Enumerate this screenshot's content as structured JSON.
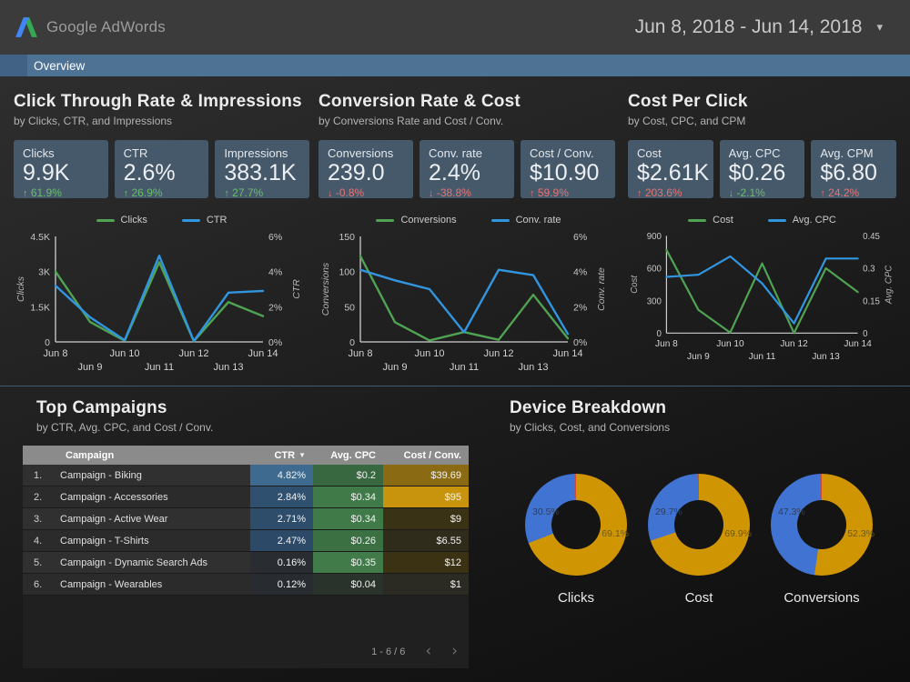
{
  "header": {
    "logo_text": "Google AdWords",
    "date_range": "Jun 8, 2018 - Jun 14, 2018"
  },
  "tabbar": {
    "label": "Overview"
  },
  "colors": {
    "series_green": "#4fa352",
    "series_blue": "#3295e0",
    "donut_gold": "#cf9502",
    "donut_blue": "#4173d2",
    "donut_red": "#d6492f",
    "delta_good": "#68bd6c",
    "delta_bad": "#e57373",
    "accent_bar": "#4e7294"
  },
  "sections": [
    {
      "title": "Click Through Rate & Impressions",
      "subtitle": "by Clicks, CTR, and Impressions",
      "cards": [
        {
          "label": "Clicks",
          "value": "9.9K",
          "delta": "61.9%",
          "direction": "up",
          "tone": "good"
        },
        {
          "label": "CTR",
          "value": "2.6%",
          "delta": "26.9%",
          "direction": "up",
          "tone": "good"
        },
        {
          "label": "Impressions",
          "value": "383.1K",
          "delta": "27.7%",
          "direction": "up",
          "tone": "good"
        }
      ]
    },
    {
      "title": "Conversion Rate & Cost",
      "subtitle": "by Conversions Rate and Cost / Conv.",
      "cards": [
        {
          "label": "Conversions",
          "value": "239.0",
          "delta": "-0.8%",
          "direction": "down",
          "tone": "bad"
        },
        {
          "label": "Conv. rate",
          "value": "2.4%",
          "delta": "-38.8%",
          "direction": "down",
          "tone": "bad"
        },
        {
          "label": "Cost / Conv.",
          "value": "$10.90",
          "delta": "59.9%",
          "direction": "up",
          "tone": "bad"
        }
      ]
    },
    {
      "title": "Cost Per Click",
      "subtitle": "by Cost, CPC, and CPM",
      "cards": [
        {
          "label": "Cost",
          "value": "$2.61K",
          "delta": "203.6%",
          "direction": "up",
          "tone": "bad"
        },
        {
          "label": "Avg. CPC",
          "value": "$0.26",
          "delta": "-2.1%",
          "direction": "down",
          "tone": "good"
        },
        {
          "label": "Avg. CPM",
          "value": "$6.80",
          "delta": "24.2%",
          "direction": "up",
          "tone": "bad"
        }
      ]
    }
  ],
  "chart_data": [
    {
      "type": "line",
      "title": "Clicks and CTR by day",
      "x": [
        "Jun 8",
        "Jun 9",
        "Jun 10",
        "Jun 11",
        "Jun 12",
        "Jun 13",
        "Jun 14"
      ],
      "left_axis": {
        "label": "Clicks",
        "ticks": [
          "0",
          "1.5K",
          "3K",
          "4.5K"
        ],
        "max": 4500
      },
      "right_axis": {
        "label": "CTR",
        "ticks": [
          "0%",
          "2%",
          "4%",
          "6%"
        ],
        "max": 6
      },
      "series": [
        {
          "name": "Clicks",
          "axis": "left",
          "color": "#4fa352",
          "values": [
            3000,
            850,
            50,
            3400,
            30,
            1700,
            1100
          ]
        },
        {
          "name": "CTR",
          "axis": "right",
          "color": "#3295e0",
          "values": [
            3.2,
            1.4,
            0.1,
            4.9,
            0.05,
            2.8,
            2.9
          ]
        }
      ]
    },
    {
      "type": "line",
      "title": "Conversions and Conv. rate by day",
      "x": [
        "Jun 8",
        "Jun 9",
        "Jun 10",
        "Jun 11",
        "Jun 12",
        "Jun 13",
        "Jun 14"
      ],
      "left_axis": {
        "label": "Conversions",
        "ticks": [
          "0",
          "50",
          "100",
          "150"
        ],
        "max": 150
      },
      "right_axis": {
        "label": "Conv. rate",
        "ticks": [
          "0%",
          "2%",
          "4%",
          "6%"
        ],
        "max": 6
      },
      "series": [
        {
          "name": "Conversions",
          "axis": "left",
          "color": "#4fa352",
          "values": [
            122,
            28,
            2,
            14,
            3,
            67,
            5
          ]
        },
        {
          "name": "Conv. rate",
          "axis": "right",
          "color": "#3295e0",
          "values": [
            4.1,
            3.5,
            3.0,
            0.55,
            4.1,
            3.8,
            0.45
          ]
        }
      ]
    },
    {
      "type": "line",
      "title": "Cost and Avg. CPC by day",
      "x": [
        "Jun 8",
        "Jun 9",
        "Jun 10",
        "Jun 11",
        "Jun 12",
        "Jun 13",
        "Jun 14"
      ],
      "left_axis": {
        "label": "Cost",
        "ticks": [
          "0",
          "300",
          "600",
          "900"
        ],
        "max": 900
      },
      "right_axis": {
        "label": "Avg. CPC",
        "ticks": [
          "0",
          "0.15",
          "0.3",
          "0.45"
        ],
        "max": 0.45
      },
      "series": [
        {
          "name": "Cost",
          "axis": "left",
          "color": "#4fa352",
          "values": [
            770,
            215,
            5,
            645,
            0,
            600,
            380
          ]
        },
        {
          "name": "Avg. CPC",
          "axis": "right",
          "color": "#3295e0",
          "values": [
            0.26,
            0.27,
            0.355,
            0.23,
            0.045,
            0.345,
            0.345
          ]
        }
      ]
    },
    {
      "type": "pie",
      "title": "Clicks",
      "slices": [
        {
          "text": "69.1%",
          "value": 69.1,
          "color": "#cf9502"
        },
        {
          "text": "30.5%",
          "value": 30.5,
          "color": "#4173d2"
        },
        {
          "text": "",
          "value": 0.4,
          "color": "#d6492f"
        }
      ]
    },
    {
      "type": "pie",
      "title": "Cost",
      "slices": [
        {
          "text": "69.9%",
          "value": 69.9,
          "color": "#cf9502"
        },
        {
          "text": "29.7%",
          "value": 29.7,
          "color": "#4173d2"
        },
        {
          "text": "",
          "value": 0.4,
          "color": "#d6492f"
        }
      ]
    },
    {
      "type": "pie",
      "title": "Conversions",
      "slices": [
        {
          "text": "52.3%",
          "value": 52.3,
          "color": "#cf9502"
        },
        {
          "text": "47.3%",
          "value": 47.3,
          "color": "#4173d2"
        },
        {
          "text": "",
          "value": 0.4,
          "color": "#d6492f"
        }
      ]
    }
  ],
  "bottom": {
    "campaigns": {
      "title": "Top Campaigns",
      "subtitle": "by CTR, Avg. CPC, and Cost / Conv.",
      "table": {
        "columns": {
          "campaign": "Campaign",
          "ctr": "CTR",
          "cpc": "Avg. CPC",
          "cost_conv": "Cost / Conv."
        },
        "sort": {
          "column": "CTR",
          "direction": "desc"
        },
        "rows": [
          {
            "rank": "1.",
            "name": "Campaign - Biking",
            "ctr": "4.82%",
            "cpc": "$0.2",
            "cost_conv": "$39.69",
            "ctr_bg": "#3d6a8e",
            "cpc_bg": "#386840",
            "cc_bg": "#8a6a12"
          },
          {
            "rank": "2.",
            "name": "Campaign - Accessories",
            "ctr": "2.84%",
            "cpc": "$0.34",
            "cost_conv": "$95",
            "ctr_bg": "#30506f",
            "cpc_bg": "#417a49",
            "cc_bg": "#c9940d"
          },
          {
            "rank": "3.",
            "name": "Campaign - Active Wear",
            "ctr": "2.71%",
            "cpc": "$0.34",
            "cost_conv": "$9",
            "ctr_bg": "#2e4d6b",
            "cpc_bg": "#417a49",
            "cc_bg": "#3a3214"
          },
          {
            "rank": "4.",
            "name": "Campaign - T-Shirts",
            "ctr": "2.47%",
            "cpc": "$0.26",
            "cost_conv": "$6.55",
            "ctr_bg": "#2c4a67",
            "cpc_bg": "#3b7043",
            "cc_bg": "#302c1c"
          },
          {
            "rank": "5.",
            "name": "Campaign - Dynamic Search Ads",
            "ctr": "0.16%",
            "cpc": "$0.35",
            "cost_conv": "$12",
            "ctr_bg": "#292d32",
            "cpc_bg": "#427b4a",
            "cc_bg": "#3a3213"
          },
          {
            "rank": "6.",
            "name": "Campaign - Wearables",
            "ctr": "0.12%",
            "cpc": "$0.04",
            "cost_conv": "$1",
            "ctr_bg": "#282c30",
            "cpc_bg": "#2a322c",
            "cc_bg": "#2b2a23"
          }
        ],
        "pagination": {
          "range": "1 - 6 / 6"
        }
      }
    },
    "devices": {
      "title": "Device Breakdown",
      "subtitle": "by Clicks, Cost, and Conversions"
    }
  }
}
